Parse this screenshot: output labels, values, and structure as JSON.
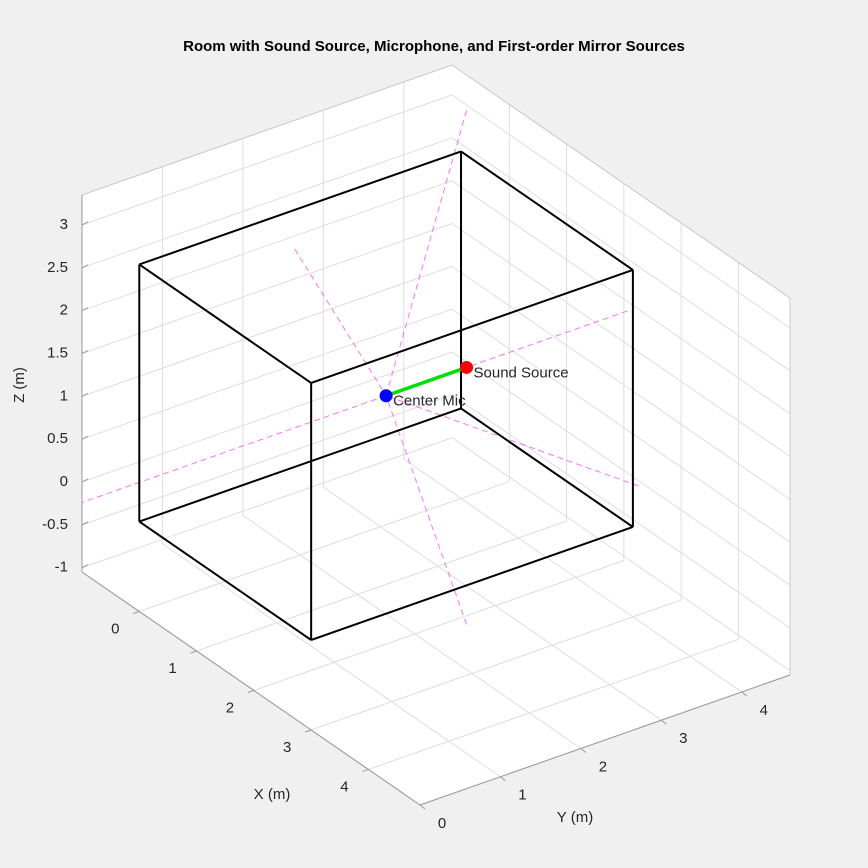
{
  "chart_data": {
    "type": "scatter3d",
    "title": "Room with Sound Source, Microphone, and First-order Mirror Sources",
    "xlabel": "X (m)",
    "ylabel": "Y (m)",
    "zlabel": "Z (m)",
    "xlim": [
      -1,
      4.9
    ],
    "ylim": [
      0,
      4.6
    ],
    "zlim": [
      -1.05,
      3.35
    ],
    "xticks": [
      0,
      1,
      2,
      3,
      4
    ],
    "yticks": [
      0,
      1,
      2,
      3,
      4
    ],
    "zticks": [
      -1,
      -0.5,
      0,
      0.5,
      1,
      1.5,
      2,
      2.5,
      3
    ],
    "grid": true,
    "room": {
      "x": [
        0,
        3
      ],
      "y": [
        0,
        4
      ],
      "z": [
        0,
        3
      ],
      "color": "#000000"
    },
    "series": [
      {
        "name": "Sound Source",
        "color": "#ff0000",
        "x": [
          1.5
        ],
        "y": [
          3
        ],
        "z": [
          1.5
        ]
      },
      {
        "name": "Center Mic",
        "color": "#0000ff",
        "x": [
          1.5
        ],
        "y": [
          2
        ],
        "z": [
          1.5
        ]
      }
    ],
    "direct_path_color": "#00dd00",
    "mirror_sources": {
      "color": "#ff00ff",
      "x": [
        -1.5,
        4.5,
        1.5,
        1.5,
        1.5,
        1.5
      ],
      "y": [
        3,
        3,
        -3,
        5,
        3,
        3
      ],
      "z": [
        1.5,
        1.5,
        1.5,
        1.5,
        -1.5,
        4.5
      ]
    }
  }
}
